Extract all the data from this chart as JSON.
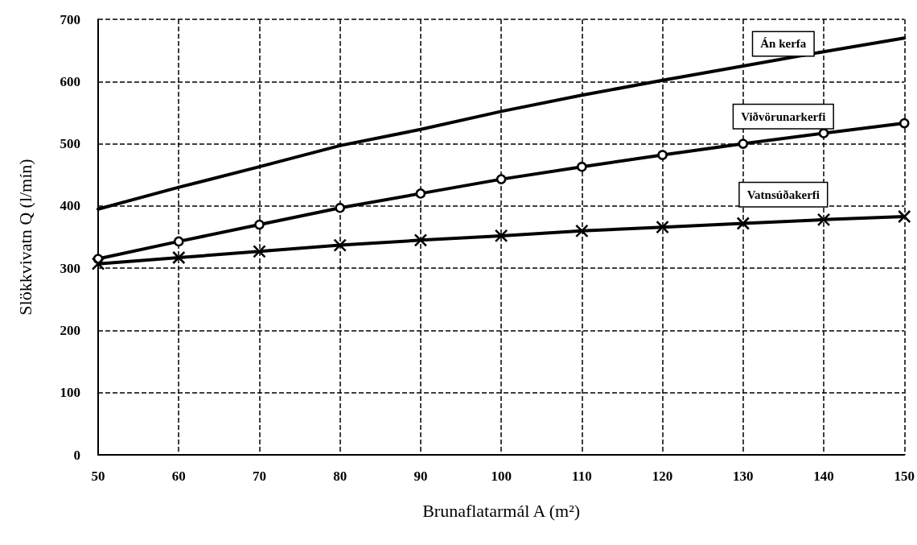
{
  "chart_data": {
    "type": "line",
    "xlabel": "Brunaflatarmál A (m²)",
    "ylabel": "Slökkvivatn Q (l/mín)",
    "x": [
      50,
      60,
      70,
      80,
      90,
      100,
      110,
      120,
      130,
      140,
      150
    ],
    "series": [
      {
        "name": "Án kerfa",
        "color": "#000000",
        "marker": "none",
        "values": [
          395,
          430,
          463,
          497,
          523,
          552,
          578,
          602,
          625,
          648,
          670
        ]
      },
      {
        "name": "Viðvörunarkerfi",
        "color": "#000000",
        "marker": "circle",
        "values": [
          315,
          343,
          370,
          397,
          420,
          443,
          463,
          482,
          500,
          517,
          533
        ]
      },
      {
        "name": "Vatnsúðakerfi",
        "color": "#000000",
        "marker": "cross",
        "values": [
          307,
          317,
          327,
          337,
          345,
          352,
          360,
          366,
          372,
          378,
          383
        ]
      }
    ],
    "xlim": [
      50,
      150
    ],
    "xticks": [
      50,
      60,
      70,
      80,
      90,
      100,
      110,
      120,
      130,
      140,
      150
    ],
    "ylim": [
      0,
      700
    ],
    "yticks": [
      0,
      100,
      200,
      300,
      400,
      500,
      600,
      700
    ],
    "grid": true,
    "line_style": "solid",
    "legend": false
  }
}
